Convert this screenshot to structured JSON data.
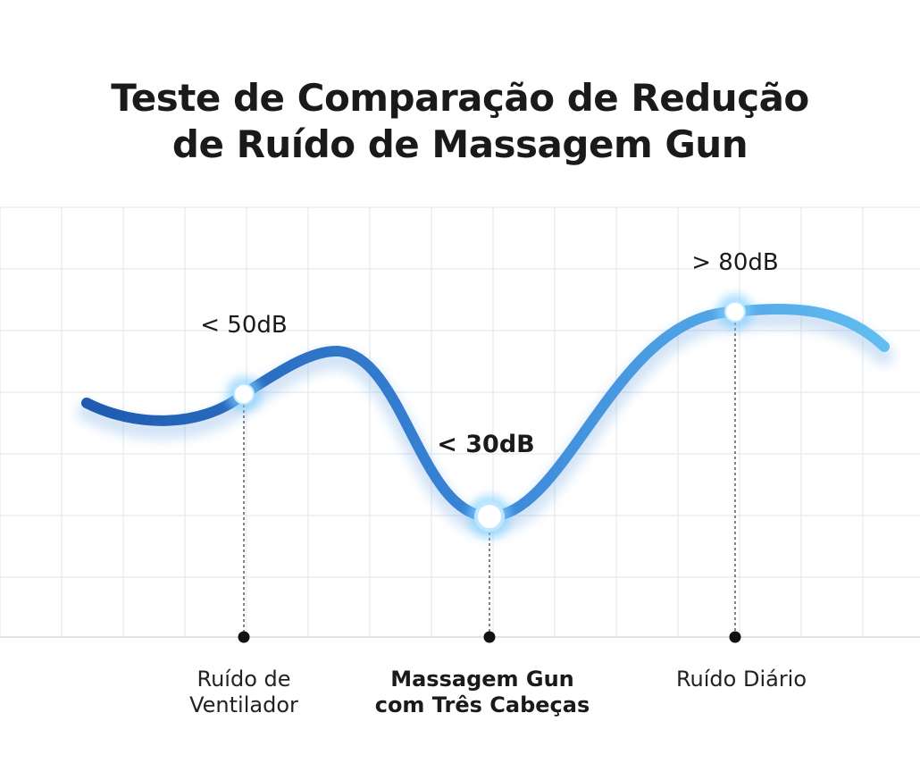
{
  "chart_data": {
    "type": "line",
    "title_lines": [
      "Teste de Comparação de Redução",
      "de Ruído de Massagem Gun"
    ],
    "categories": [
      {
        "lines": [
          "Ruído de",
          "Ventilador"
        ],
        "bold": false,
        "faded_second_line": false
      },
      {
        "lines": [
          "Massagem Gun",
          "com Três Cabeças"
        ],
        "bold": true,
        "faded_second_line": false
      },
      {
        "lines": [
          "Ruído Diário",
          ""
        ],
        "bold": false,
        "faded_second_line": true
      }
    ],
    "points": [
      {
        "label": "< 50dB",
        "value": 50,
        "bold": false
      },
      {
        "label": "< 30dB",
        "value": 30,
        "bold": true
      },
      {
        "label": "> 80dB",
        "value": 80,
        "bold": false
      }
    ],
    "grid": true,
    "colors": {
      "line_start": "#1e5aaf",
      "line_mid": "#3a86d8",
      "line_end": "#62bdf0",
      "glow": "#7fd0ff",
      "grid": "#e6e9ee",
      "leader": "#333333",
      "text": "#1a1a1a"
    }
  }
}
